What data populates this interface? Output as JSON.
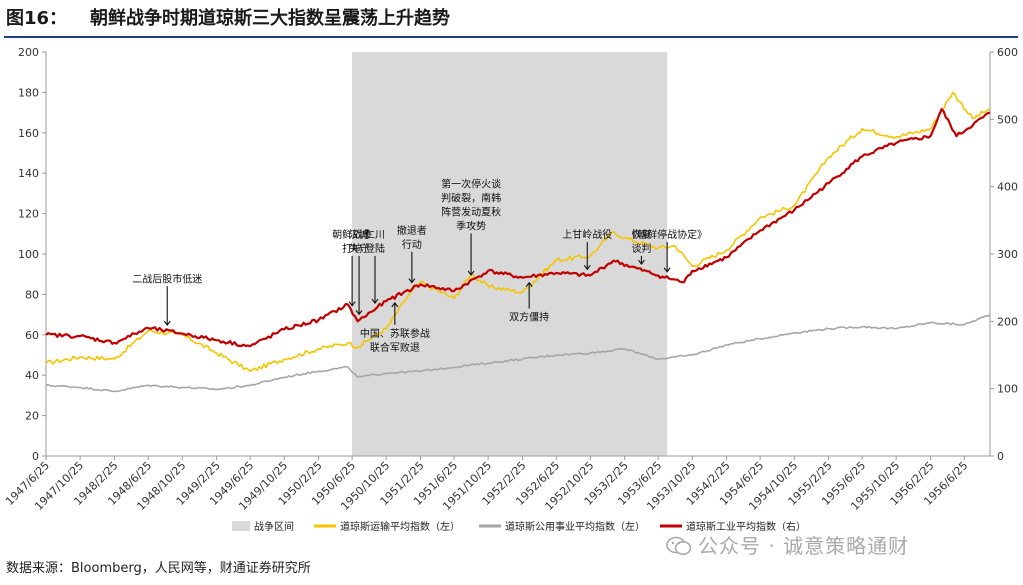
{
  "title": {
    "label": "图16：",
    "text": "朝鲜战争时期道琼斯三大指数呈震荡上升趋势"
  },
  "source": "数据来源：Bloomberg，人民网等，财通证券研究所",
  "watermark": "公众号 · 诚意策略通财",
  "colors": {
    "shade": "#d9d9d9",
    "transport": "#f5c400",
    "utility": "#a6a6a6",
    "industrial": "#c00000",
    "accent": "#1f3c88"
  },
  "chart_data": {
    "type": "line",
    "left_axis": {
      "ylim": [
        0,
        200
      ],
      "ticks": [
        0,
        20,
        40,
        60,
        80,
        100,
        120,
        140,
        160,
        180,
        200
      ]
    },
    "right_axis": {
      "ylim": [
        0,
        600
      ],
      "ticks": [
        0,
        100,
        200,
        300,
        400,
        500,
        600
      ]
    },
    "x_range": [
      "1947-06-25",
      "1956-09-25"
    ],
    "x_ticks": [
      "1947/6/25",
      "1947/10/25",
      "1948/2/25",
      "1948/6/25",
      "1948/10/25",
      "1949/2/25",
      "1949/6/25",
      "1949/10/25",
      "1950/2/25",
      "1950/6/25",
      "1950/10/25",
      "1951/2/25",
      "1951/6/25",
      "1951/10/25",
      "1952/2/25",
      "1952/6/25",
      "1952/10/25",
      "1953/2/25",
      "1953/6/25",
      "1953/10/25",
      "1954/2/25",
      "1954/6/25",
      "1954/10/25",
      "1955/2/25",
      "1955/6/25",
      "1955/10/25",
      "1956/2/25",
      "1956/6/25"
    ],
    "shaded_region": {
      "name": "战争区间",
      "start": "1950-06-25",
      "end": "1953-07-27"
    },
    "series": [
      {
        "name": "道琼斯运输平均指数（左）",
        "axis": "left",
        "color": "#f5c400",
        "points": [
          [
            "1947-06-25",
            46
          ],
          [
            "1947-10-25",
            49
          ],
          [
            "1948-02-25",
            48
          ],
          [
            "1948-06-25",
            62
          ],
          [
            "1948-10-25",
            60
          ],
          [
            "1949-02-25",
            51
          ],
          [
            "1949-06-25",
            42
          ],
          [
            "1949-10-25",
            48
          ],
          [
            "1950-02-25",
            53
          ],
          [
            "1950-06-10",
            56
          ],
          [
            "1950-07-15",
            54
          ],
          [
            "1950-10-25",
            63
          ],
          [
            "1951-01-15",
            80
          ],
          [
            "1951-02-25",
            86
          ],
          [
            "1951-06-25",
            78
          ],
          [
            "1951-08-25",
            90
          ],
          [
            "1951-10-25",
            84
          ],
          [
            "1952-02-25",
            81
          ],
          [
            "1952-06-25",
            97
          ],
          [
            "1952-10-25",
            99
          ],
          [
            "1953-01-15",
            111
          ],
          [
            "1953-02-25",
            108
          ],
          [
            "1953-06-25",
            103
          ],
          [
            "1953-08-25",
            104
          ],
          [
            "1953-10-25",
            94
          ],
          [
            "1954-02-25",
            102
          ],
          [
            "1954-06-25",
            118
          ],
          [
            "1954-10-25",
            124
          ],
          [
            "1955-02-25",
            148
          ],
          [
            "1955-06-25",
            162
          ],
          [
            "1955-10-25",
            158
          ],
          [
            "1956-02-25",
            162
          ],
          [
            "1956-05-15",
            180
          ],
          [
            "1956-07-25",
            167
          ],
          [
            "1956-09-25",
            172
          ]
        ]
      },
      {
        "name": "道琼斯公用事业平均指数（左）",
        "axis": "left",
        "color": "#a6a6a6",
        "points": [
          [
            "1947-06-25",
            35
          ],
          [
            "1947-10-25",
            34
          ],
          [
            "1948-02-25",
            32
          ],
          [
            "1948-06-25",
            35
          ],
          [
            "1948-10-25",
            34
          ],
          [
            "1949-02-25",
            33
          ],
          [
            "1949-06-25",
            35
          ],
          [
            "1949-10-25",
            39
          ],
          [
            "1950-02-25",
            42
          ],
          [
            "1950-06-10",
            44
          ],
          [
            "1950-07-15",
            39
          ],
          [
            "1950-10-25",
            41
          ],
          [
            "1951-02-25",
            42
          ],
          [
            "1951-06-25",
            44
          ],
          [
            "1951-10-25",
            46
          ],
          [
            "1952-02-25",
            48
          ],
          [
            "1952-06-25",
            50
          ],
          [
            "1952-10-25",
            51
          ],
          [
            "1953-02-25",
            53
          ],
          [
            "1953-06-25",
            48
          ],
          [
            "1953-10-25",
            50
          ],
          [
            "1954-02-25",
            55
          ],
          [
            "1954-06-25",
            58
          ],
          [
            "1954-10-25",
            61
          ],
          [
            "1955-02-25",
            63
          ],
          [
            "1955-06-25",
            64
          ],
          [
            "1955-10-25",
            63
          ],
          [
            "1956-02-25",
            66
          ],
          [
            "1956-06-25",
            65
          ],
          [
            "1956-09-25",
            70
          ]
        ]
      },
      {
        "name": "道琼斯工业平均指数（右）",
        "axis": "right",
        "color": "#c00000",
        "points": [
          [
            "1947-06-25",
            180
          ],
          [
            "1947-10-25",
            178
          ],
          [
            "1948-02-25",
            168
          ],
          [
            "1948-06-25",
            190
          ],
          [
            "1948-10-25",
            182
          ],
          [
            "1949-02-25",
            172
          ],
          [
            "1949-06-25",
            163
          ],
          [
            "1949-10-25",
            188
          ],
          [
            "1950-02-25",
            202
          ],
          [
            "1950-06-10",
            225
          ],
          [
            "1950-07-15",
            200
          ],
          [
            "1950-10-25",
            230
          ],
          [
            "1951-02-25",
            255
          ],
          [
            "1951-06-25",
            245
          ],
          [
            "1951-10-25",
            275
          ],
          [
            "1952-02-25",
            265
          ],
          [
            "1952-06-25",
            272
          ],
          [
            "1952-10-25",
            268
          ],
          [
            "1953-01-15",
            290
          ],
          [
            "1953-06-25",
            268
          ],
          [
            "1953-09-25",
            258
          ],
          [
            "1953-10-25",
            275
          ],
          [
            "1954-02-25",
            295
          ],
          [
            "1954-06-25",
            335
          ],
          [
            "1954-10-25",
            365
          ],
          [
            "1955-02-25",
            405
          ],
          [
            "1955-06-25",
            445
          ],
          [
            "1955-10-25",
            465
          ],
          [
            "1956-02-25",
            475
          ],
          [
            "1956-04-05",
            515
          ],
          [
            "1956-05-28",
            475
          ],
          [
            "1956-09-25",
            510
          ]
        ]
      }
    ],
    "annotations": [
      {
        "lines": [
          "二战后股市低迷"
        ],
        "at": "1948-09-01",
        "y": 62
      },
      {
        "lines": [
          "朝鲜战争",
          "打响"
        ],
        "at": "1950-06-25",
        "y": 78
      },
      {
        "lines": [
          "汉城",
          "失守"
        ],
        "at": "1950-07-20",
        "y": 77
      },
      {
        "lines": [
          "仁川",
          "登陆"
        ],
        "at": "1950-09-15",
        "y": 84
      },
      {
        "lines": [
          "撤退者",
          "行动"
        ],
        "at": "1951-01-25",
        "y": 86
      },
      {
        "lines": [
          "第一次停火谈",
          "判破裂，南韩",
          "阵营发动夏秋",
          "季攻势"
        ],
        "at": "1951-08-25",
        "y": 89
      },
      {
        "lines": [
          "中国、苏联参战",
          "联合军败退"
        ],
        "at": "1950-11-25",
        "y": 71
      },
      {
        "lines": [
          "双方僵持"
        ],
        "at": "1952-03-20",
        "y": 81
      },
      {
        "lines": [
          "上甘岭战役"
        ],
        "at": "1952-10-14",
        "y": 87
      },
      {
        "lines": [
          "恢复",
          "谈判"
        ],
        "at": "1953-04-26",
        "y": 88
      },
      {
        "lines": [
          "《朝鲜停战协定》"
        ],
        "at": "1953-07-27",
        "y": 86
      }
    ]
  }
}
